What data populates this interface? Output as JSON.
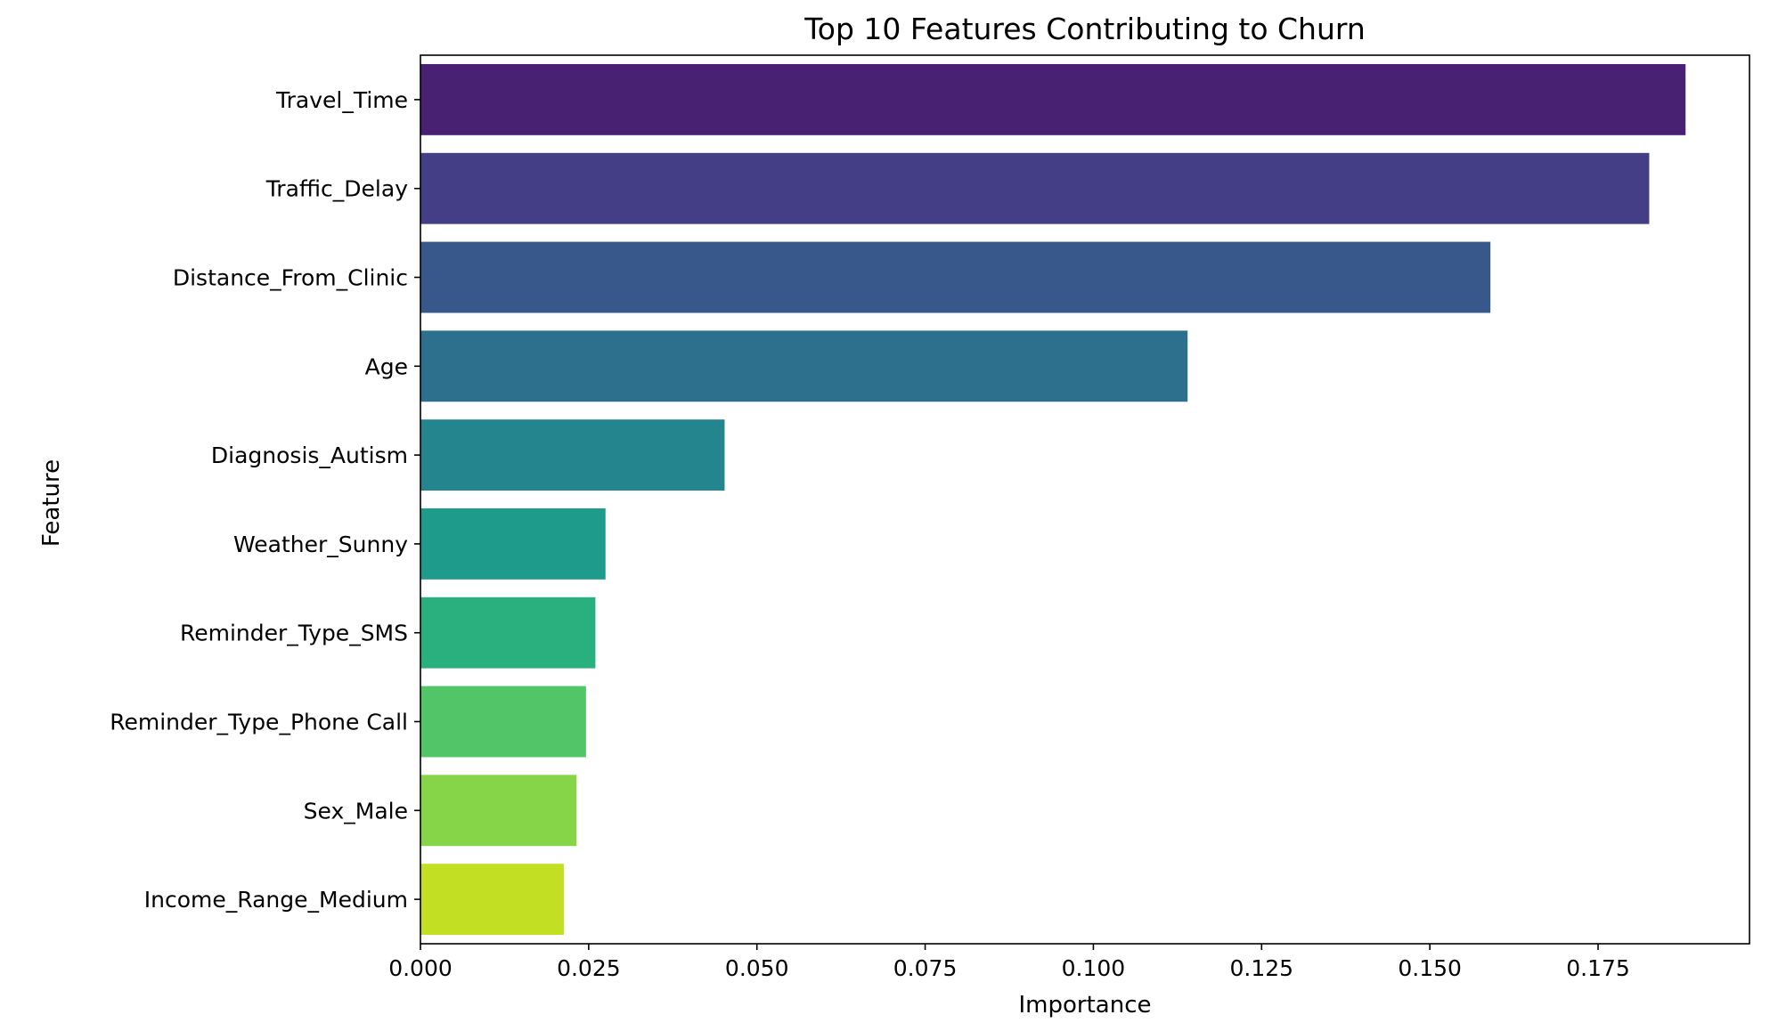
{
  "chart_data": {
    "type": "bar",
    "orientation": "horizontal",
    "title": "Top 10 Features Contributing to Churn",
    "xlabel": "Importance",
    "ylabel": "Feature",
    "categories": [
      "Travel_Time",
      "Traffic_Delay",
      "Distance_From_Clinic",
      "Age",
      "Diagnosis_Autism",
      "Weather_Sunny",
      "Reminder_Type_SMS",
      "Reminder_Type_Phone Call",
      "Sex_Male",
      "Income_Range_Medium"
    ],
    "values": [
      0.188,
      0.1826,
      0.159,
      0.114,
      0.0452,
      0.0275,
      0.026,
      0.0246,
      0.0232,
      0.0213
    ],
    "colors": [
      "#482173",
      "#433e85",
      "#38588c",
      "#2d708e",
      "#25858e",
      "#1e9b8a",
      "#2ab07f",
      "#52c569",
      "#86d549",
      "#c2df23"
    ],
    "xticks": [
      "0.000",
      "0.025",
      "0.050",
      "0.075",
      "0.100",
      "0.125",
      "0.150",
      "0.175"
    ],
    "xlim": [
      0,
      0.1975
    ],
    "grid": false,
    "legend": "none"
  }
}
